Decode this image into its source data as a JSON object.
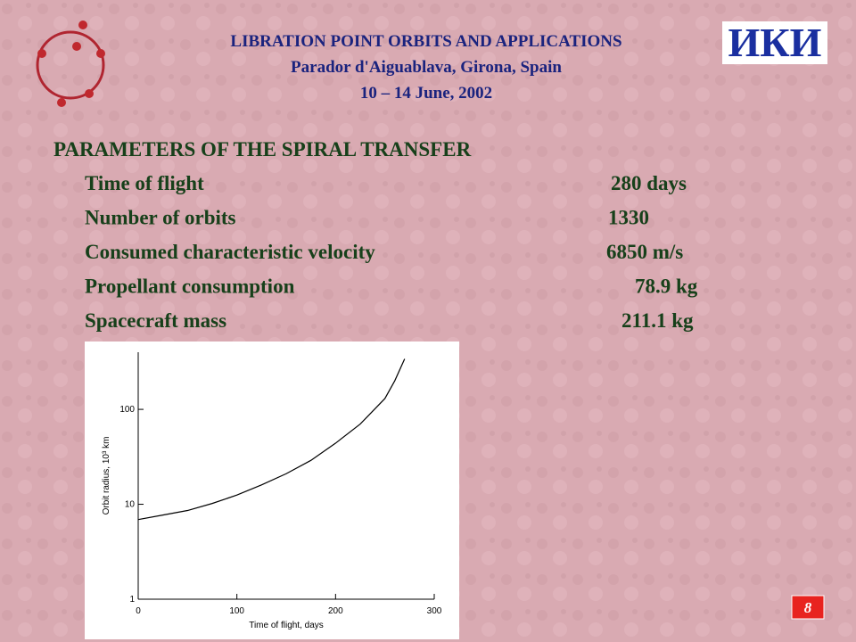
{
  "header": {
    "title": "LIBRATION POINT ORBITS AND APPLICATIONS",
    "venue": "Parador d'Aiguablava, Girona, Spain",
    "dates": "10 – 14 June, 2002",
    "logo": "ИКИ"
  },
  "section": {
    "title": "PARAMETERS OF THE SPIRAL TRANSFER",
    "rows": [
      [
        "Time of flight",
        "280 days"
      ],
      [
        "Number of orbits",
        "1330"
      ],
      [
        "Consumed characteristic velocity",
        "6850 m/s"
      ],
      [
        "Propellant consumption",
        "78.9 kg"
      ],
      [
        "Spacecraft mass",
        "211.1 kg"
      ]
    ]
  },
  "chart_data": {
    "type": "line",
    "x_label": "Time of flight, days",
    "y_label": "Orbit radius, 10³ km",
    "x": [
      0,
      25,
      50,
      75,
      100,
      125,
      150,
      175,
      200,
      225,
      250,
      260,
      270
    ],
    "series": [
      {
        "name": null,
        "color": "#000000",
        "values": [
          6.9,
          7.7,
          8.6,
          10.2,
          12.5,
          16,
          21,
          29,
          44,
          70,
          130,
          200,
          340
        ]
      }
    ],
    "xlim": [
      0,
      300
    ],
    "xticks": [
      0,
      100,
      200,
      300
    ],
    "ylim": [
      1,
      400
    ],
    "yticks": [
      1,
      10,
      100
    ],
    "log_y": true
  },
  "page_number": "8"
}
